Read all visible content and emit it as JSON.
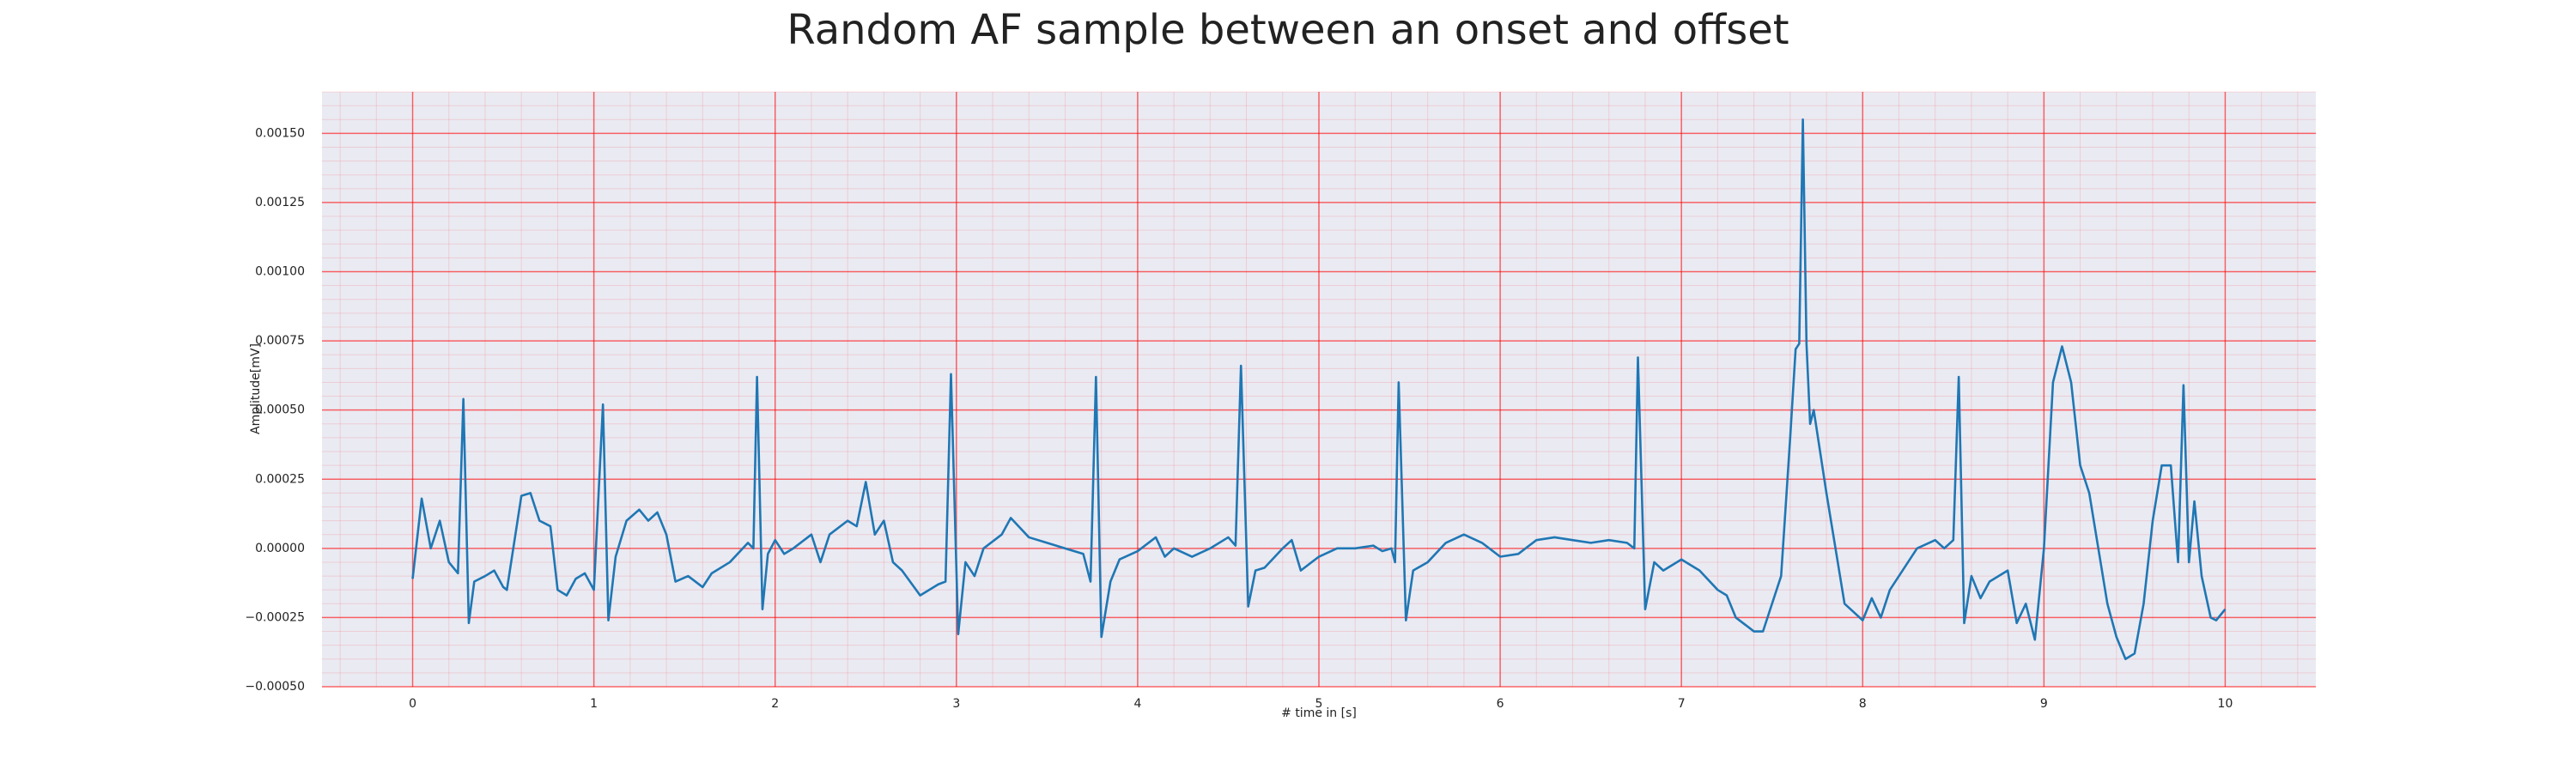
{
  "chart_data": {
    "type": "line",
    "title": "Random AF sample between an onset and offset",
    "x_label": "# time in [s]",
    "y_label": "Amplitude[mV]",
    "color": "#1f77b4",
    "background": "#eaeaf2",
    "grid": true,
    "grid_color": "#ff0000",
    "minor_grid": 5,
    "xlim": [
      -0.5,
      10.5
    ],
    "ylim": [
      -0.0005,
      0.00165
    ],
    "xticks": [
      0,
      1,
      2,
      3,
      4,
      5,
      6,
      7,
      8,
      9,
      10
    ],
    "yticks": [
      {
        "value": -0.0005,
        "label": "−0.00050"
      },
      {
        "value": -0.00025,
        "label": "−0.00025"
      },
      {
        "value": 0,
        "label": "0.00000"
      },
      {
        "value": 0.00025,
        "label": "0.00025"
      },
      {
        "value": 0.0005,
        "label": "0.00050"
      },
      {
        "value": 0.00075,
        "label": "0.00075"
      },
      {
        "value": 0.001,
        "label": "0.00100"
      },
      {
        "value": 0.00125,
        "label": "0.00125"
      },
      {
        "value": 0.0015,
        "label": "0.00150"
      }
    ],
    "x": [
      0,
      0.05,
      0.1,
      0.15,
      0.2,
      0.25,
      0.28,
      0.31,
      0.34,
      0.4,
      0.45,
      0.5,
      0.52,
      0.6,
      0.65,
      0.7,
      0.76,
      0.8,
      0.85,
      0.9,
      0.95,
      1.0,
      1.05,
      1.08,
      1.12,
      1.18,
      1.25,
      1.3,
      1.35,
      1.4,
      1.45,
      1.52,
      1.6,
      1.65,
      1.75,
      1.85,
      1.88,
      1.9,
      1.93,
      1.96,
      2.0,
      2.05,
      2.1,
      2.2,
      2.25,
      2.3,
      2.4,
      2.45,
      2.5,
      2.55,
      2.6,
      2.65,
      2.7,
      2.8,
      2.9,
      2.94,
      2.97,
      3.01,
      3.05,
      3.1,
      3.15,
      3.25,
      3.3,
      3.4,
      3.5,
      3.6,
      3.7,
      3.74,
      3.77,
      3.8,
      3.85,
      3.9,
      4.0,
      4.1,
      4.15,
      4.2,
      4.3,
      4.4,
      4.5,
      4.54,
      4.57,
      4.61,
      4.65,
      4.7,
      4.8,
      4.85,
      4.9,
      5.0,
      5.1,
      5.2,
      5.3,
      5.35,
      5.4,
      5.42,
      5.44,
      5.48,
      5.52,
      5.6,
      5.7,
      5.8,
      5.9,
      6.0,
      6.1,
      6.2,
      6.3,
      6.4,
      6.5,
      6.6,
      6.7,
      6.74,
      6.76,
      6.8,
      6.85,
      6.9,
      7.0,
      7.1,
      7.2,
      7.25,
      7.3,
      7.4,
      7.45,
      7.55,
      7.6,
      7.63,
      7.65,
      7.67,
      7.69,
      7.71,
      7.73,
      7.8,
      7.85,
      7.9,
      8.0,
      8.05,
      8.1,
      8.15,
      8.25,
      8.3,
      8.4,
      8.45,
      8.5,
      8.53,
      8.56,
      8.6,
      8.65,
      8.7,
      8.8,
      8.85,
      8.9,
      8.95,
      9.0,
      9.05,
      9.1,
      9.15,
      9.2,
      9.25,
      9.3,
      9.35,
      9.4,
      9.45,
      9.5,
      9.55,
      9.6,
      9.65,
      9.7,
      9.74,
      9.77,
      9.8,
      9.83,
      9.87,
      9.92,
      9.95,
      10.0
    ],
    "values": [
      -0.00011,
      0.00018,
      0.0,
      0.0001,
      -5e-05,
      -9e-05,
      0.00054,
      -0.00027,
      -0.00012,
      -0.0001,
      -8e-05,
      -0.00014,
      -0.00015,
      0.00019,
      0.0002,
      0.0001,
      8e-05,
      -0.00015,
      -0.00017,
      -0.00011,
      -9e-05,
      -0.00015,
      0.00052,
      -0.00026,
      -3e-05,
      0.0001,
      0.00014,
      0.0001,
      0.00013,
      5e-05,
      -0.00012,
      -0.0001,
      -0.00014,
      -9e-05,
      -5e-05,
      2e-05,
      0.0,
      0.00062,
      -0.00022,
      -2e-05,
      3e-05,
      -2e-05,
      0.0,
      5e-05,
      -5e-05,
      5e-05,
      0.0001,
      8e-05,
      0.00024,
      5e-05,
      0.0001,
      -5e-05,
      -8e-05,
      -0.00017,
      -0.00013,
      -0.00012,
      0.00063,
      -0.00031,
      -5e-05,
      -0.0001,
      0.0,
      5e-05,
      0.00011,
      4e-05,
      2e-05,
      0.0,
      -2e-05,
      -0.00012,
      0.00062,
      -0.00032,
      -0.00012,
      -4e-05,
      -1e-05,
      4e-05,
      -3e-05,
      0.0,
      -3e-05,
      0.0,
      4e-05,
      1e-05,
      0.00066,
      -0.00021,
      -8e-05,
      -7e-05,
      0.0,
      3e-05,
      -8e-05,
      -3e-05,
      0.0,
      0.0,
      1e-05,
      -1e-05,
      0.0,
      -5e-05,
      0.0006,
      -0.00026,
      -8e-05,
      -5e-05,
      2e-05,
      5e-05,
      2e-05,
      -3e-05,
      -2e-05,
      3e-05,
      4e-05,
      3e-05,
      2e-05,
      3e-05,
      2e-05,
      0.0,
      0.00069,
      -0.00022,
      -5e-05,
      -8e-05,
      -4e-05,
      -8e-05,
      -0.00015,
      -0.00017,
      -0.00025,
      -0.0003,
      -0.0003,
      -0.0001,
      0.0004,
      0.00072,
      0.00074,
      0.00155,
      0.00074,
      0.00045,
      0.0005,
      0.0002,
      0.0,
      -0.0002,
      -0.00026,
      -0.00018,
      -0.00025,
      -0.00015,
      -5e-05,
      0.0,
      3e-05,
      0.0,
      3e-05,
      0.00062,
      -0.00027,
      -0.0001,
      -0.00018,
      -0.00012,
      -8e-05,
      -0.00027,
      -0.0002,
      -0.00033,
      0.0,
      0.0006,
      0.00073,
      0.0006,
      0.0003,
      0.0002,
      0.0,
      -0.0002,
      -0.00032,
      -0.0004,
      -0.00038,
      -0.0002,
      0.0001,
      0.0003,
      0.0003,
      -5e-05,
      0.00059,
      -5e-05,
      0.00017,
      -0.0001,
      -0.00025,
      -0.00026,
      -0.00022
    ]
  }
}
